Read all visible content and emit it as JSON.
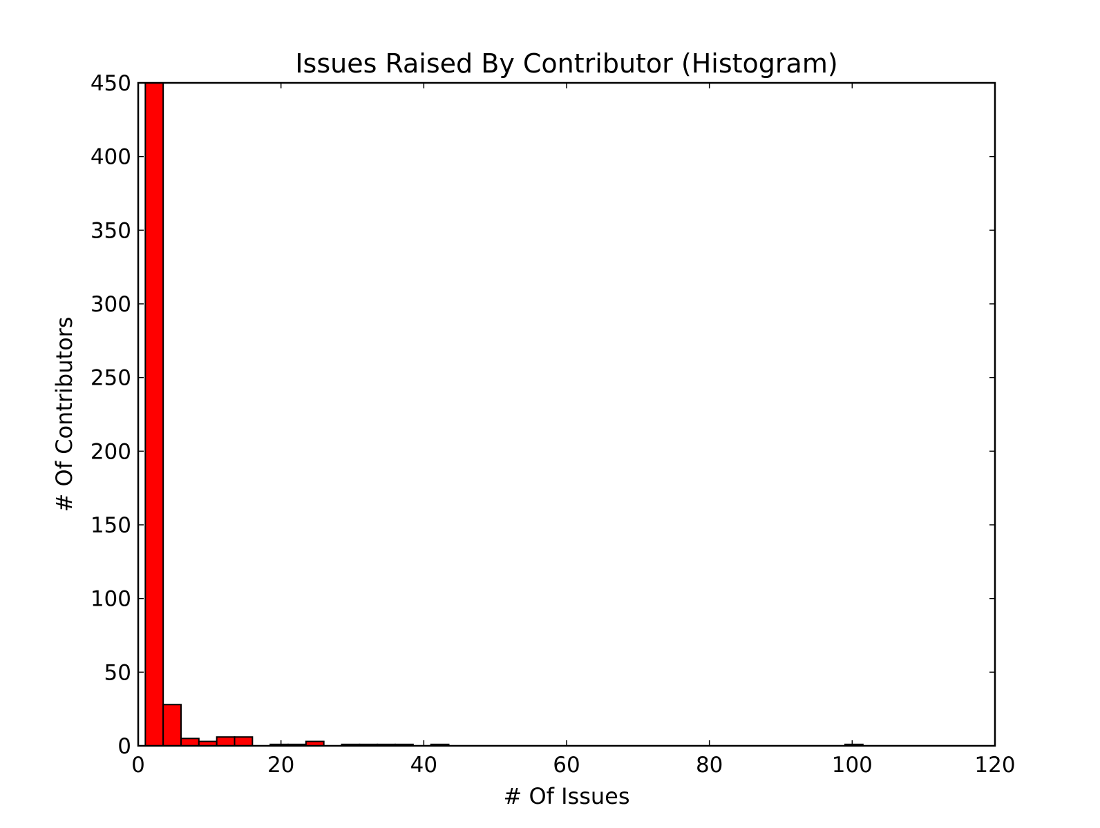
{
  "chart_data": {
    "type": "bar",
    "title": "Issues Raised By Contributor (Histogram)",
    "xlabel": "# Of Issues",
    "ylabel": "# Of Contributors",
    "xlim": [
      0,
      120
    ],
    "ylim": [
      0,
      450
    ],
    "x_ticks": [
      "0",
      "20",
      "40",
      "60",
      "80",
      "100",
      "120"
    ],
    "y_ticks": [
      "0",
      "50",
      "100",
      "150",
      "200",
      "250",
      "300",
      "350",
      "400",
      "450"
    ],
    "grid": false,
    "legend": "none",
    "bar_color": "#ff0000",
    "edge_color": "#000000",
    "bins": [
      {
        "x0": 1.0,
        "x1": 3.5,
        "count": 450
      },
      {
        "x0": 3.5,
        "x1": 6.0,
        "count": 28
      },
      {
        "x0": 6.0,
        "x1": 8.5,
        "count": 5
      },
      {
        "x0": 8.5,
        "x1": 11.0,
        "count": 3
      },
      {
        "x0": 11.0,
        "x1": 13.5,
        "count": 6
      },
      {
        "x0": 13.5,
        "x1": 16.0,
        "count": 6
      },
      {
        "x0": 18.5,
        "x1": 21.0,
        "count": 1
      },
      {
        "x0": 21.0,
        "x1": 23.5,
        "count": 1
      },
      {
        "x0": 23.5,
        "x1": 26.0,
        "count": 3
      },
      {
        "x0": 28.5,
        "x1": 31.0,
        "count": 1
      },
      {
        "x0": 31.0,
        "x1": 33.5,
        "count": 1
      },
      {
        "x0": 33.5,
        "x1": 36.0,
        "count": 1
      },
      {
        "x0": 36.0,
        "x1": 38.5,
        "count": 1
      },
      {
        "x0": 41.0,
        "x1": 43.5,
        "count": 1
      },
      {
        "x0": 99.0,
        "x1": 101.5,
        "count": 1
      }
    ]
  }
}
